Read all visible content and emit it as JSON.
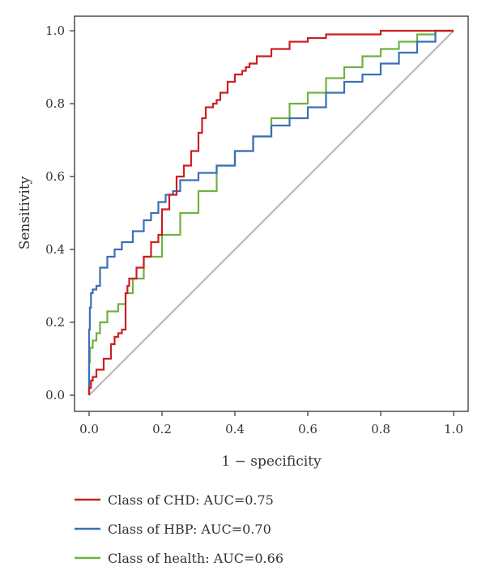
{
  "chart_data": {
    "type": "line",
    "title": "",
    "xlabel": "1 − specificity",
    "ylabel": "Sensitivity",
    "xlim": [
      0,
      1
    ],
    "ylim": [
      0,
      1
    ],
    "x_ticks": [
      "0.0",
      "0.2",
      "0.4",
      "0.6",
      "0.8",
      "1.0"
    ],
    "y_ticks": [
      "0.0",
      "0.2",
      "0.4",
      "0.6",
      "0.8",
      "1.0"
    ],
    "grid": false,
    "legend_position": "bottom-left",
    "reference_line": {
      "x": [
        0,
        1
      ],
      "y": [
        0,
        1
      ],
      "color": "#b3b3b3"
    },
    "series": [
      {
        "name": "Class of CHD: AUC=0.75",
        "color": "#cc1f1f",
        "x": [
          0,
          0.005,
          0.01,
          0.02,
          0.04,
          0.06,
          0.07,
          0.08,
          0.09,
          0.1,
          0.105,
          0.11,
          0.13,
          0.15,
          0.17,
          0.19,
          0.2,
          0.22,
          0.24,
          0.26,
          0.28,
          0.3,
          0.31,
          0.32,
          0.34,
          0.35,
          0.36,
          0.38,
          0.4,
          0.42,
          0.43,
          0.44,
          0.46,
          0.5,
          0.55,
          0.6,
          0.65,
          0.7,
          0.8,
          0.9,
          1.0
        ],
        "y": [
          0,
          0.02,
          0.04,
          0.05,
          0.07,
          0.1,
          0.14,
          0.16,
          0.17,
          0.18,
          0.28,
          0.3,
          0.32,
          0.35,
          0.38,
          0.42,
          0.44,
          0.51,
          0.55,
          0.6,
          0.63,
          0.67,
          0.72,
          0.76,
          0.79,
          0.8,
          0.81,
          0.83,
          0.86,
          0.88,
          0.89,
          0.9,
          0.91,
          0.93,
          0.95,
          0.97,
          0.98,
          0.99,
          0.99,
          1.0,
          1.0
        ]
      },
      {
        "name": "Class of HBP: AUC=0.70",
        "color": "#3a6fb8",
        "x": [
          0,
          0.002,
          0.005,
          0.01,
          0.02,
          0.03,
          0.05,
          0.07,
          0.09,
          0.12,
          0.15,
          0.17,
          0.19,
          0.21,
          0.23,
          0.25,
          0.3,
          0.35,
          0.4,
          0.45,
          0.5,
          0.55,
          0.6,
          0.65,
          0.7,
          0.75,
          0.8,
          0.85,
          0.9,
          0.95,
          1.0
        ],
        "y": [
          0,
          0.18,
          0.24,
          0.28,
          0.29,
          0.3,
          0.35,
          0.38,
          0.4,
          0.42,
          0.45,
          0.48,
          0.5,
          0.53,
          0.55,
          0.56,
          0.59,
          0.61,
          0.63,
          0.67,
          0.71,
          0.74,
          0.76,
          0.79,
          0.83,
          0.86,
          0.88,
          0.91,
          0.94,
          0.97,
          1.0
        ]
      },
      {
        "name": "Class of health: AUC=0.66",
        "color": "#6db33f",
        "x": [
          0,
          0.002,
          0.01,
          0.02,
          0.03,
          0.05,
          0.08,
          0.1,
          0.12,
          0.15,
          0.2,
          0.25,
          0.3,
          0.35,
          0.4,
          0.45,
          0.5,
          0.55,
          0.6,
          0.65,
          0.7,
          0.75,
          0.8,
          0.85,
          0.9,
          0.95,
          1.0
        ],
        "y": [
          0,
          0.09,
          0.13,
          0.15,
          0.17,
          0.2,
          0.23,
          0.25,
          0.28,
          0.32,
          0.38,
          0.44,
          0.5,
          0.56,
          0.63,
          0.67,
          0.71,
          0.76,
          0.8,
          0.83,
          0.87,
          0.9,
          0.93,
          0.95,
          0.97,
          0.99,
          1.0
        ]
      }
    ]
  }
}
